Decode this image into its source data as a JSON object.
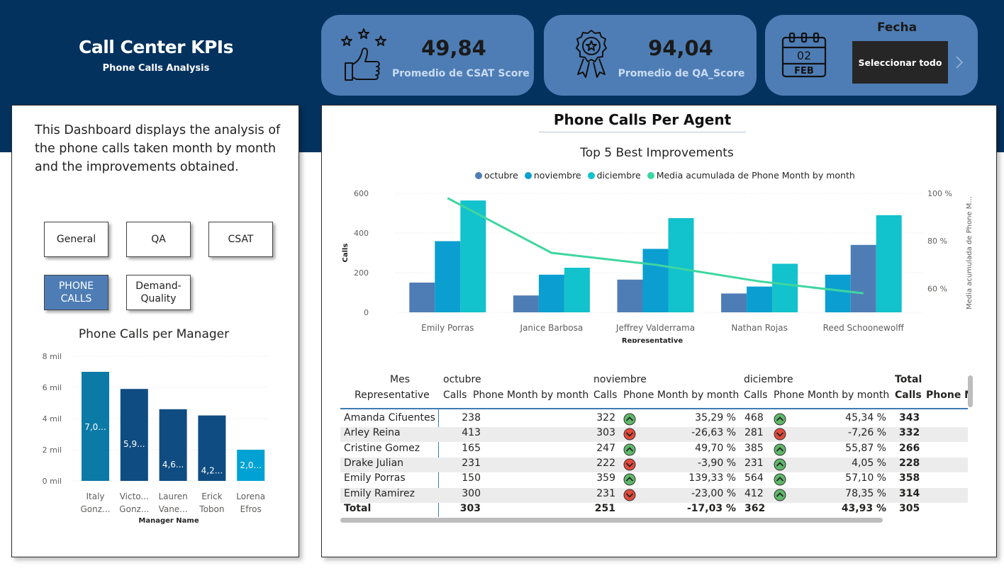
{
  "header": {
    "title": "Call Center KPIs",
    "subtitle": "Phone Calls Analysis"
  },
  "kpis": [
    {
      "value": "49,84",
      "label": "Promedio de CSAT Score",
      "icon": "thumbs-up-stars-icon"
    },
    {
      "value": "94,04",
      "label": "Promedio de QA_Score",
      "icon": "award-ribbon-icon"
    }
  ],
  "date_filter": {
    "label": "Fecha",
    "button": "Seleccionar todo",
    "calendar_day": "02",
    "calendar_month": "FEB",
    "icon": "calendar-icon"
  },
  "left_panel": {
    "description": "This Dashboard displays the analysis of the phone calls taken month by month and the improvements obtained.",
    "nav_buttons": [
      {
        "label": "General",
        "active": false
      },
      {
        "label": "QA",
        "active": false
      },
      {
        "label": "CSAT",
        "active": false
      },
      {
        "label": "PHONE CALLS",
        "active": true
      },
      {
        "label": "Demand-Quality",
        "active": false
      }
    ]
  },
  "main_panel": {
    "title": "Phone Calls Per Agent"
  },
  "chart_data": [
    {
      "type": "bar",
      "title": "Phone Calls per Manager",
      "xlabel": "Manager Name",
      "ylabel": "",
      "categories": [
        [
          "Italy",
          "Gonz..."
        ],
        [
          "Victo...",
          "Gonz..."
        ],
        [
          "Lauren",
          "Vane..."
        ],
        [
          "Erick",
          "Tobon"
        ],
        [
          "Lorena",
          "Efros"
        ]
      ],
      "values": [
        7000,
        5900,
        4600,
        4200,
        2000
      ],
      "data_labels": [
        "7,0...",
        "5,9...",
        "4,6...",
        "4,2...",
        "2,0..."
      ],
      "bar_colors": [
        "#0b7aa6",
        "#0f4c81",
        "#0f4c81",
        "#0f4c81",
        "#00a2d4"
      ],
      "yticks": [
        "0 mil",
        "2 mil",
        "4 mil",
        "6 mil",
        "8 mil"
      ],
      "ylim": [
        0,
        8000
      ],
      "grid": true
    },
    {
      "type": "bar",
      "title": "Top 5 Best Improvements",
      "xlabel": "Representative",
      "ylabel": "Calls",
      "y2label": "Media acumulada de Phone M...",
      "categories": [
        "Emily Porras",
        "Janice Barbosa",
        "Jeffrey Valderrama",
        "Nathan Rojas",
        "Reed Schoonewolff"
      ],
      "series": [
        {
          "name": "octubre",
          "color": "#4e7db5",
          "values": [
            150,
            85,
            165,
            95,
            190
          ]
        },
        {
          "name": "noviembre",
          "color": "#0a9fd0",
          "values": [
            359,
            190,
            320,
            130,
            340
          ]
        },
        {
          "name": "diciembre",
          "color": "#12c2cc",
          "values": [
            564,
            225,
            475,
            245,
            490
          ]
        },
        {
          "name": "Media acumulada de Phone Month by month",
          "color": "#3ed6a0",
          "type": "line",
          "axis": "right",
          "values": [
            98,
            75,
            70,
            63,
            58
          ]
        }
      ],
      "bar_color_overrides": {
        "Reed Schoonewolff": [
          "#0a9fd0",
          "#4e7db5",
          "#12c2cc"
        ]
      },
      "yticks": [
        "0",
        "200",
        "400",
        "600"
      ],
      "ylim": [
        0,
        600
      ],
      "y2ticks": [
        "60 %",
        "80 %",
        "100 %"
      ],
      "y2lim": [
        50,
        100
      ],
      "legend_position": "top",
      "grid": true
    }
  ],
  "table": {
    "header_row1": {
      "mes": "Mes",
      "octubre": "octubre",
      "noviembre": "noviembre",
      "diciembre": "diciembre",
      "total": "Total"
    },
    "header_row2": {
      "rep": "Representative",
      "calls": "Calls",
      "pm": "Phone Month by month",
      "total_calls": "Calls",
      "total_pm": "Phone M"
    },
    "rows": [
      {
        "name": "Amanda Cifuentes",
        "oct": "238",
        "nov": "322",
        "nov_pct": "35,29 %",
        "nov_up": true,
        "dic": "468",
        "dic_pct": "45,34 %",
        "dic_up": true,
        "total": "343"
      },
      {
        "name": "Arley Reina",
        "oct": "413",
        "nov": "303",
        "nov_pct": "-26,63 %",
        "nov_up": false,
        "dic": "281",
        "dic_pct": "-7,26 %",
        "dic_up": false,
        "total": "332"
      },
      {
        "name": "Cristine Gomez",
        "oct": "165",
        "nov": "247",
        "nov_pct": "49,70 %",
        "nov_up": true,
        "dic": "385",
        "dic_pct": "55,87 %",
        "dic_up": true,
        "total": "266"
      },
      {
        "name": "Drake Julian",
        "oct": "231",
        "nov": "222",
        "nov_pct": "-3,90 %",
        "nov_up": false,
        "dic": "231",
        "dic_pct": "4,05 %",
        "dic_up": true,
        "total": "228"
      },
      {
        "name": "Emily Porras",
        "oct": "150",
        "nov": "359",
        "nov_pct": "139,33 %",
        "nov_up": true,
        "dic": "564",
        "dic_pct": "57,10 %",
        "dic_up": true,
        "total": "358"
      },
      {
        "name": "Emily Ramirez",
        "oct": "300",
        "nov": "231",
        "nov_pct": "-23,00 %",
        "nov_up": false,
        "dic": "412",
        "dic_pct": "78,35 %",
        "dic_up": true,
        "total": "314"
      }
    ],
    "total_row": {
      "name": "Total",
      "oct": "303",
      "nov": "251",
      "nov_pct": "-17,03 %",
      "nov_up": false,
      "dic": "362",
      "dic_pct": "43,93 %",
      "dic_up": true,
      "total": "305"
    }
  }
}
